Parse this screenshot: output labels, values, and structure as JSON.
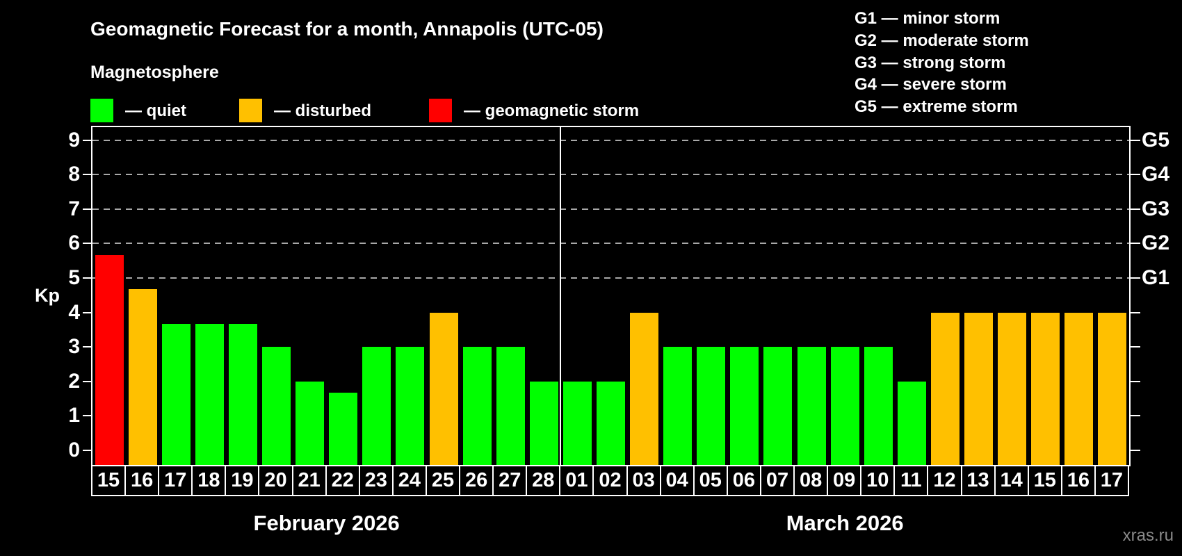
{
  "header": {
    "title": "Geomagnetic Forecast for a month, Annapolis (UTC-05)",
    "subtitle": "Magnetosphere",
    "legend": [
      {
        "key": "quiet",
        "label": "— quiet",
        "color": "#00FF00"
      },
      {
        "key": "disturbed",
        "label": "— disturbed",
        "color": "#FFC000"
      },
      {
        "key": "storm",
        "label": "— geomagnetic storm",
        "color": "#FF0000"
      }
    ],
    "g_scale_legend": [
      "G1 — minor storm",
      "G2 — moderate storm",
      "G3 — strong storm",
      "G4 — severe storm",
      "G5 — extreme storm"
    ]
  },
  "chart_data": {
    "type": "bar",
    "title": "Geomagnetic Forecast for a month, Annapolis (UTC-05)",
    "ylabel": "Kp",
    "ylim": [
      0,
      9.4
    ],
    "grid": "dashed horizontal at storm levels only",
    "y_axis": {
      "title": "Kp",
      "ticks": [
        0,
        1,
        2,
        3,
        4,
        5,
        6,
        7,
        8,
        9
      ],
      "gridlines_at": [
        5,
        6,
        7,
        8,
        9
      ]
    },
    "right_axis_labels": [
      {
        "kp": 5,
        "text": "G1"
      },
      {
        "kp": 6,
        "text": "G2"
      },
      {
        "kp": 7,
        "text": "G3"
      },
      {
        "kp": 8,
        "text": "G4"
      },
      {
        "kp": 9,
        "text": "G5"
      }
    ],
    "months": [
      {
        "name": "February 2026",
        "days": 14
      },
      {
        "name": "March 2026",
        "days": 17
      }
    ],
    "status_colors": {
      "quiet": "#00FF00",
      "disturbed": "#FFC000",
      "storm": "#FF0000"
    },
    "series": [
      {
        "day": "15",
        "month": "February 2026",
        "kp": 5.67,
        "status": "storm"
      },
      {
        "day": "16",
        "month": "February 2026",
        "kp": 4.67,
        "status": "disturbed"
      },
      {
        "day": "17",
        "month": "February 2026",
        "kp": 3.67,
        "status": "quiet"
      },
      {
        "day": "18",
        "month": "February 2026",
        "kp": 3.67,
        "status": "quiet"
      },
      {
        "day": "19",
        "month": "February 2026",
        "kp": 3.67,
        "status": "quiet"
      },
      {
        "day": "20",
        "month": "February 2026",
        "kp": 3,
        "status": "quiet"
      },
      {
        "day": "21",
        "month": "February 2026",
        "kp": 2,
        "status": "quiet"
      },
      {
        "day": "22",
        "month": "February 2026",
        "kp": 1.67,
        "status": "quiet"
      },
      {
        "day": "23",
        "month": "February 2026",
        "kp": 3,
        "status": "quiet"
      },
      {
        "day": "24",
        "month": "February 2026",
        "kp": 3,
        "status": "quiet"
      },
      {
        "day": "25",
        "month": "February 2026",
        "kp": 4,
        "status": "disturbed"
      },
      {
        "day": "26",
        "month": "February 2026",
        "kp": 3,
        "status": "quiet"
      },
      {
        "day": "27",
        "month": "February 2026",
        "kp": 3,
        "status": "quiet"
      },
      {
        "day": "28",
        "month": "February 2026",
        "kp": 2,
        "status": "quiet"
      },
      {
        "day": "01",
        "month": "March 2026",
        "kp": 2,
        "status": "quiet"
      },
      {
        "day": "02",
        "month": "March 2026",
        "kp": 2,
        "status": "quiet"
      },
      {
        "day": "03",
        "month": "March 2026",
        "kp": 4,
        "status": "disturbed"
      },
      {
        "day": "04",
        "month": "March 2026",
        "kp": 3,
        "status": "quiet"
      },
      {
        "day": "05",
        "month": "March 2026",
        "kp": 3,
        "status": "quiet"
      },
      {
        "day": "06",
        "month": "March 2026",
        "kp": 3,
        "status": "quiet"
      },
      {
        "day": "07",
        "month": "March 2026",
        "kp": 3,
        "status": "quiet"
      },
      {
        "day": "08",
        "month": "March 2026",
        "kp": 3,
        "status": "quiet"
      },
      {
        "day": "09",
        "month": "March 2026",
        "kp": 3,
        "status": "quiet"
      },
      {
        "day": "10",
        "month": "March 2026",
        "kp": 3,
        "status": "quiet"
      },
      {
        "day": "11",
        "month": "March 2026",
        "kp": 2,
        "status": "quiet"
      },
      {
        "day": "12",
        "month": "March 2026",
        "kp": 4,
        "status": "disturbed"
      },
      {
        "day": "13",
        "month": "March 2026",
        "kp": 4,
        "status": "disturbed"
      },
      {
        "day": "14",
        "month": "March 2026",
        "kp": 4,
        "status": "disturbed"
      },
      {
        "day": "15",
        "month": "March 2026",
        "kp": 4,
        "status": "disturbed"
      },
      {
        "day": "16",
        "month": "March 2026",
        "kp": 4,
        "status": "disturbed"
      },
      {
        "day": "17",
        "month": "March 2026",
        "kp": 4,
        "status": "disturbed"
      }
    ]
  },
  "watermark": "xras.ru"
}
